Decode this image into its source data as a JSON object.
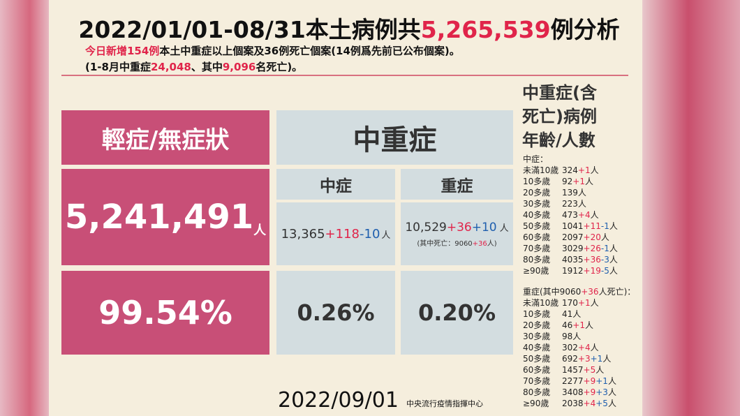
{
  "header": {
    "title": [
      "2022/01/01-08/31本土病例共",
      "5,265,539",
      "例分析"
    ],
    "line1": [
      "今日新增154例",
      "本土中重症以上個案及36例死亡個案(14例爲先前已公布個案)。"
    ],
    "line2": [
      "(1-8月中重症",
      "24,048",
      "、其中",
      "9,096",
      "名死亡)。"
    ]
  },
  "table": {
    "mild": {
      "label": "輕症/無症狀",
      "count": "5,241,491",
      "unit": "人",
      "percent": "99.54%"
    },
    "severe": {
      "label": "中重症"
    },
    "moderate": {
      "label": "中症",
      "count": [
        "13,365",
        "+118",
        "-10",
        "人"
      ],
      "percent": "0.26%"
    },
    "critical": {
      "label": "重症",
      "count": [
        "10,529",
        "+36",
        "+10",
        "人"
      ],
      "note": [
        "(其中死亡：9060",
        "+36",
        "人)"
      ],
      "percent": "0.20%"
    }
  },
  "side": {
    "title": [
      "中重症(含",
      "死亡)病例",
      "年齡/人數"
    ],
    "moderate": {
      "heading": [
        "中症："
      ],
      "rows": [
        {
          "age": "未滿10歲",
          "count": "324",
          "new": "+1",
          "unit": "人"
        },
        {
          "age": "10多歲",
          "count": "92",
          "new": "+1",
          "unit": "人"
        },
        {
          "age": "20多歲",
          "count": "139",
          "unit": "人"
        },
        {
          "age": "30多歲",
          "count": "223",
          "unit": "人"
        },
        {
          "age": "40多歲",
          "count": "473",
          "new": "+4",
          "unit": "人"
        },
        {
          "age": "50多歲",
          "count": "1041",
          "new": "+11",
          "deaths": "-1",
          "unit": "人"
        },
        {
          "age": "60多歲",
          "count": "2097",
          "new": "+20",
          "unit": "人"
        },
        {
          "age": "70多歲",
          "count": "3029",
          "new": "+26",
          "deaths": "-1",
          "unit": "人"
        },
        {
          "age": "80多歲",
          "count": "4035",
          "new": "+36",
          "deaths": "-3",
          "unit": "人"
        },
        {
          "age": "≥90歲",
          "count": "1912",
          "new": "+19",
          "deaths": "-5",
          "unit": "人"
        }
      ]
    },
    "critical": {
      "heading": [
        "重症(其中9060",
        "+36",
        "人死亡)："
      ],
      "rows": [
        {
          "age": "未滿10歲",
          "count": "170",
          "new": "+1",
          "unit": "人"
        },
        {
          "age": "10多歲",
          "count": "41",
          "unit": "人"
        },
        {
          "age": "20多歲",
          "count": "46",
          "new": "+1",
          "unit": "人"
        },
        {
          "age": "30多歲",
          "count": "98",
          "unit": "人"
        },
        {
          "age": "40多歲",
          "count": "302",
          "new": "+4",
          "unit": "人"
        },
        {
          "age": "50多歲",
          "count": "692",
          "new": "+3",
          "deaths": "+1",
          "unit": "人"
        },
        {
          "age": "60多歲",
          "count": "1457",
          "new": "+5",
          "unit": "人"
        },
        {
          "age": "70多歲",
          "count": "2277",
          "new": "+9",
          "deaths": "+1",
          "unit": "人"
        },
        {
          "age": "80多歲",
          "count": "3408",
          "new": "+9",
          "deaths": "+3",
          "unit": "人"
        },
        {
          "age": "≥90歲",
          "count": "2038",
          "new": "+4",
          "deaths": "+5",
          "unit": "人"
        }
      ]
    }
  },
  "footer": {
    "date": "2022/09/01",
    "org": "中央流行疫情指揮中心"
  }
}
